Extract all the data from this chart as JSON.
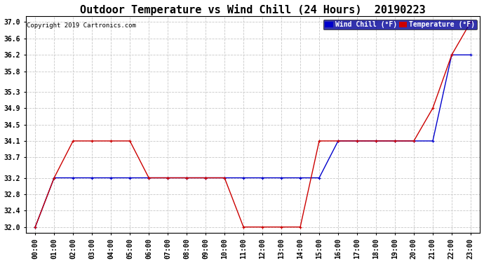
{
  "title": "Outdoor Temperature vs Wind Chill (24 Hours)  20190223",
  "copyright": "Copyright 2019 Cartronics.com",
  "background_color": "#ffffff",
  "grid_color": "#c8c8c8",
  "x_labels": [
    "00:00",
    "01:00",
    "02:00",
    "03:00",
    "04:00",
    "05:00",
    "06:00",
    "07:00",
    "08:00",
    "09:00",
    "10:00",
    "11:00",
    "12:00",
    "13:00",
    "14:00",
    "15:00",
    "16:00",
    "17:00",
    "18:00",
    "19:00",
    "20:00",
    "21:00",
    "22:00",
    "23:00"
  ],
  "ylim": [
    31.85,
    37.15
  ],
  "yticks": [
    32.0,
    32.4,
    32.8,
    33.2,
    33.7,
    34.1,
    34.5,
    34.9,
    35.3,
    35.8,
    36.2,
    36.6,
    37.0
  ],
  "temperature": [
    32.0,
    33.2,
    34.1,
    34.1,
    34.1,
    34.1,
    33.2,
    33.2,
    33.2,
    33.2,
    33.2,
    32.0,
    32.0,
    32.0,
    32.0,
    34.1,
    34.1,
    34.1,
    34.1,
    34.1,
    34.1,
    34.9,
    36.2,
    37.0
  ],
  "wind_chill": [
    32.0,
    33.2,
    33.2,
    33.2,
    33.2,
    33.2,
    33.2,
    33.2,
    33.2,
    33.2,
    33.2,
    33.2,
    33.2,
    33.2,
    33.2,
    33.2,
    34.1,
    34.1,
    34.1,
    34.1,
    34.1,
    34.1,
    36.2,
    36.2
  ],
  "temp_color": "#cc0000",
  "wind_chill_color": "#0000cc",
  "temp_label": "Temperature (°F)",
  "wind_chill_label": "Wind Chill (°F)",
  "title_fontsize": 11,
  "tick_fontsize": 7,
  "legend_bg": "#000099",
  "legend_fontsize": 7
}
